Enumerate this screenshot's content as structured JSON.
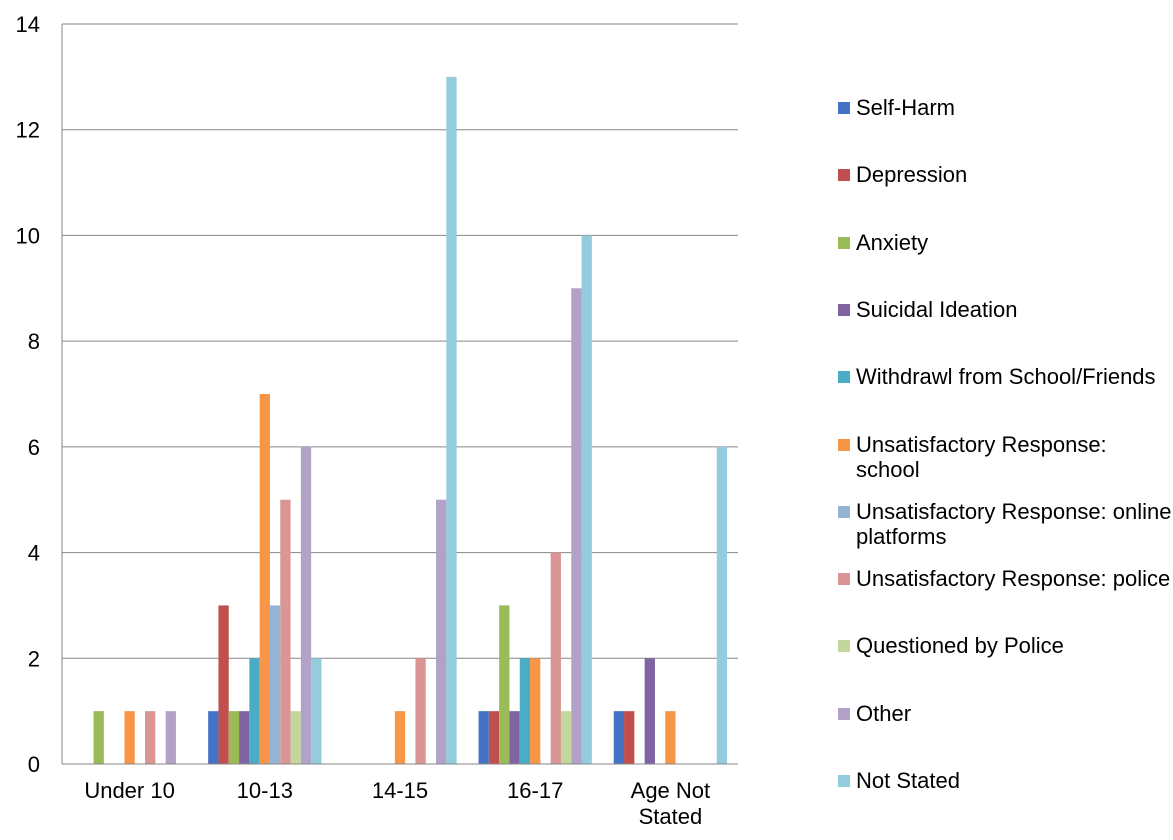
{
  "chart_data": {
    "type": "bar",
    "title": "",
    "xlabel": "",
    "ylabel": "",
    "categories": [
      "Under 10",
      "10-13",
      "14-15",
      "16-17",
      "Age Not Stated"
    ],
    "ylim": [
      0,
      14
    ],
    "yticks": [
      0,
      2,
      4,
      6,
      8,
      10,
      12,
      14
    ],
    "grid": true,
    "legend_position": "right",
    "series": [
      {
        "name": "Self-Harm",
        "color": "#4472C4",
        "values": [
          0,
          1,
          0,
          1,
          1
        ]
      },
      {
        "name": "Depression",
        "color": "#C0504D",
        "values": [
          0,
          3,
          0,
          1,
          1
        ]
      },
      {
        "name": "Anxiety",
        "color": "#9BBB59",
        "values": [
          1,
          1,
          0,
          3,
          0
        ]
      },
      {
        "name": "Suicidal Ideation",
        "color": "#8064A2",
        "values": [
          0,
          1,
          0,
          1,
          2
        ]
      },
      {
        "name": "Withdrawl from School/Friends",
        "color": "#4BACC6",
        "values": [
          0,
          2,
          0,
          2,
          0
        ]
      },
      {
        "name": "Unsatisfactory Response: school",
        "color": "#F79646",
        "values": [
          1,
          7,
          1,
          2,
          1
        ]
      },
      {
        "name": "Unsatisfactory Response: online platforms",
        "color": "#95B3D7",
        "values": [
          0,
          3,
          0,
          0,
          0
        ]
      },
      {
        "name": "Unsatisfactory Response: police",
        "color": "#D99694",
        "values": [
          1,
          5,
          2,
          4,
          0
        ]
      },
      {
        "name": "Questioned by Police",
        "color": "#C3D69B",
        "values": [
          0,
          1,
          0,
          1,
          0
        ]
      },
      {
        "name": "Other",
        "color": "#B3A2C7",
        "values": [
          1,
          6,
          5,
          9,
          0
        ]
      },
      {
        "name": "Not Stated",
        "color": "#93CDDD",
        "values": [
          0,
          2,
          13,
          10,
          6
        ]
      }
    ]
  }
}
